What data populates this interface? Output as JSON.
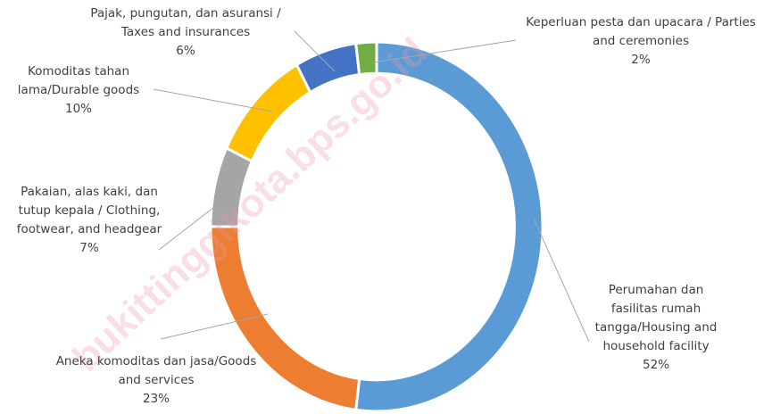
{
  "chart_data": {
    "type": "donut",
    "categories": [
      "Perumahan dan fasilitas rumah tangga/Housing and household facility",
      "Aneka komoditas dan jasa/Goods and services",
      "Pakaian, alas kaki, dan tutup kepala / Clothing, footwear, and headgear",
      "Komoditas tahan lama/Durable goods",
      "Pajak, pungutan, dan asuransi / Taxes and insurances",
      "Keperluan pesta dan upacara / Parties and ceremonies"
    ],
    "values": [
      52,
      23,
      7,
      10,
      6,
      2
    ],
    "value_labels": [
      "52%",
      "23%",
      "7%",
      "10%",
      "6%",
      "2%"
    ],
    "colors": [
      "#5b9bd5",
      "#ed7d31",
      "#a5a5a5",
      "#ffc000",
      "#4472c4",
      "#70ad47"
    ],
    "watermark": "bukittinggikota.bps.go.id"
  }
}
